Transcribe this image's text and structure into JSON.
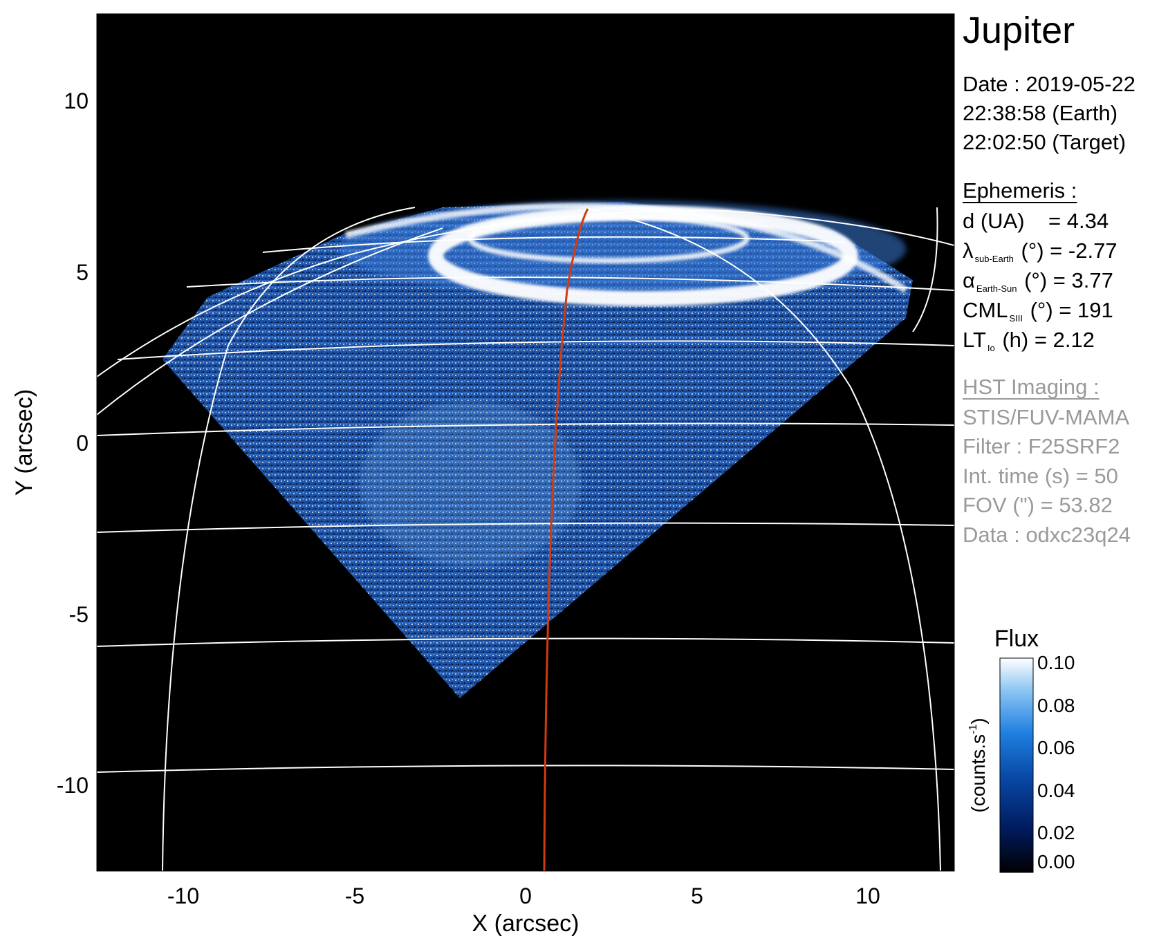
{
  "title": "Jupiter",
  "observation": {
    "date_line": "Date : 2019-05-22",
    "earth_time": "22:38:58 (Earth)",
    "target_time": "22:02:50 (Target)"
  },
  "ephemeris": {
    "header": "Ephemeris :",
    "distance": {
      "label": "d (UA)",
      "value": "= 4.34"
    },
    "lambda": {
      "symbol": "λ",
      "subscript": "sub-Earth",
      "unit": "(°)",
      "value": "= -2.77"
    },
    "alpha": {
      "symbol": "α",
      "subscript": "Earth-Sun",
      "unit": "(°)",
      "value": "= 3.77"
    },
    "cml": {
      "symbol": "CML",
      "subscript": "SIII",
      "unit": "(°)",
      "value": "= 191"
    },
    "lt": {
      "symbol": "LT",
      "subscript": "Io",
      "unit": "(h)",
      "value": "= 2.12"
    }
  },
  "hst": {
    "header": "HST Imaging :",
    "instrument": "STIS/FUV-MAMA",
    "filter": "Filter : F25SRF2",
    "int_time": "Int. time (s) = 50",
    "fov": "FOV (\") = 53.82",
    "data": "Data : odxc23q24"
  },
  "axes": {
    "xlabel": "X (arcsec)",
    "ylabel": "Y (arcsec)",
    "xticks": [
      "-10",
      "-5",
      "0",
      "5",
      "10"
    ],
    "xtick_values": [
      -10,
      -5,
      0,
      5,
      10
    ],
    "yticks": [
      "10",
      "5",
      "0",
      "-5",
      "-10"
    ],
    "ytick_values": [
      10,
      5,
      0,
      -5,
      -10
    ],
    "xlim": [
      -12.5,
      12.5
    ],
    "ylim": [
      -12.5,
      12.5
    ]
  },
  "colorbar": {
    "title": "Flux",
    "unit_label": "(counts.s",
    "unit_exp": "-1",
    "unit_close": ")",
    "ticks": [
      "0.10",
      "0.08",
      "0.06",
      "0.04",
      "0.02",
      "0.00"
    ],
    "tick_values": [
      0.1,
      0.08,
      0.06,
      0.04,
      0.02,
      0.0
    ],
    "range": [
      0.0,
      0.1
    ],
    "colors": [
      "#000000",
      "#001a5c",
      "#0a4aa8",
      "#1f7fe0",
      "#8cc6f2",
      "#ffffff"
    ]
  },
  "colors": {
    "background": "#000000",
    "grid": "#ffffff",
    "meridian": "#d23a10",
    "emission": "#1c5fc0"
  }
}
